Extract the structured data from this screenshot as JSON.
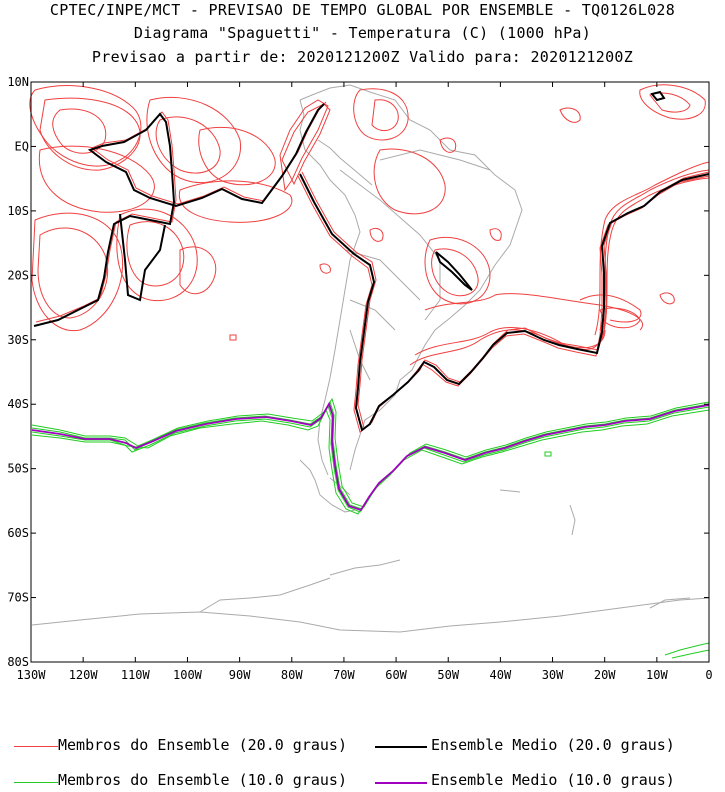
{
  "title": {
    "line1": "CPTEC/INPE/MCT - PREVISAO DE TEMPO GLOBAL POR ENSEMBLE - TQ0126L028",
    "line2": "Diagrama \"Spaguetti\" - Temperatura (C) (1000 hPa)",
    "line3": "Previsao a partir de: 2020121200Z  Valido para: 2020121200Z"
  },
  "axes": {
    "lon_labels": [
      "130W",
      "120W",
      "110W",
      "100W",
      "90W",
      "80W",
      "70W",
      "60W",
      "50W",
      "40W",
      "30W",
      "20W",
      "10W",
      "0"
    ],
    "lat_labels": [
      "10N",
      "EQ",
      "10S",
      "20S",
      "30S",
      "40S",
      "50S",
      "60S",
      "70S",
      "80S"
    ],
    "lon_range": [
      -130,
      0
    ],
    "lat_range": [
      -80,
      10
    ]
  },
  "legend": [
    {
      "label": "Membros do Ensemble (20.0 graus)",
      "color": "#f04040"
    },
    {
      "label": "Ensemble Medio (20.0 graus)",
      "color": "#000000"
    },
    {
      "label": "Membros do Ensemble (10.0 graus)",
      "color": "#22cc22"
    },
    {
      "label": "Ensemble Medio (10.0 graus)",
      "color": "#a000c0"
    }
  ],
  "colors": {
    "members20": "#f04040",
    "mean20": "#000000",
    "members10": "#22cc22",
    "mean10": "#a000c0",
    "coast": "#aaaaaa"
  }
}
